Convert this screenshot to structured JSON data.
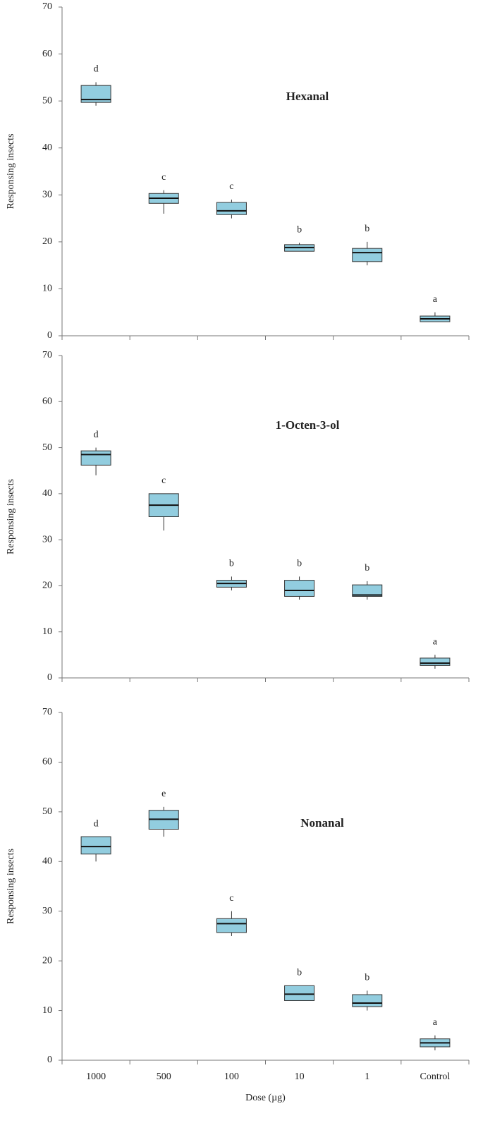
{
  "chart_data": [
    {
      "type": "box",
      "title": "Hexanal",
      "ylabel": "Responsing insects",
      "values": [
        [
          49,
          49.7,
          50.3,
          53.3,
          54
        ],
        [
          26,
          28.2,
          29.3,
          30.3,
          31
        ],
        [
          25,
          25.8,
          26.6,
          28.4,
          29
        ],
        [
          18,
          18,
          18.8,
          19.4,
          19.8
        ],
        [
          15,
          15.8,
          17.7,
          18.6,
          20
        ],
        [
          3,
          3,
          3.6,
          4.2,
          5
        ]
      ],
      "annotations": [
        "d",
        "c",
        "c",
        "b",
        "b",
        "a"
      ],
      "color": "#92cddf",
      "ylim": [
        0,
        70
      ],
      "yticks": [
        0,
        10,
        20,
        30,
        40,
        50,
        60,
        70
      ]
    },
    {
      "type": "box",
      "title": "1-Octen-3-ol",
      "ylabel": "Responsing insects",
      "values": [
        [
          44,
          46.2,
          48.5,
          49.3,
          50
        ],
        [
          32,
          35,
          37.5,
          40,
          40
        ],
        [
          19,
          19.7,
          20.5,
          21.2,
          22
        ],
        [
          17,
          17.7,
          19,
          21.2,
          22
        ],
        [
          17,
          17.7,
          18,
          20.2,
          21
        ],
        [
          2,
          2.7,
          3.2,
          4.3,
          5
        ]
      ],
      "annotations": [
        "d",
        "c",
        "b",
        "b",
        "b",
        "a"
      ],
      "color": "#92cddf",
      "ylim": [
        0,
        70
      ],
      "yticks": [
        0,
        10,
        20,
        30,
        40,
        50,
        60,
        70
      ]
    },
    {
      "type": "box",
      "title": "Nonanal",
      "ylabel": "Responsing insects",
      "xlabel": "Dose (µg)",
      "categories": [
        "1000",
        "500",
        "100",
        "10",
        "1",
        "Control"
      ],
      "values": [
        [
          40,
          41.5,
          43,
          45,
          45
        ],
        [
          45,
          46.5,
          48.5,
          50.3,
          51
        ],
        [
          25,
          25.7,
          27.5,
          28.5,
          30
        ],
        [
          12,
          12,
          13.3,
          15,
          15
        ],
        [
          10,
          10.8,
          11.5,
          13.2,
          14
        ],
        [
          2,
          2.7,
          3.5,
          4.3,
          5
        ]
      ],
      "annotations": [
        "d",
        "e",
        "c",
        "b",
        "b",
        "a"
      ],
      "color": "#92cddf",
      "ylim": [
        0,
        70
      ],
      "yticks": [
        0,
        10,
        20,
        30,
        40,
        50,
        60,
        70
      ]
    }
  ]
}
